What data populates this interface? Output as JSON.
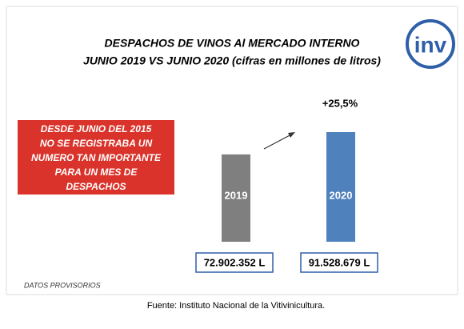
{
  "chart_data": {
    "type": "bar",
    "title": [
      "DESPACHOS DE VINOS Al MERCADO INTERNO",
      "JUNIO 2019 VS JUNIO 2020 (cifras en millones de litros)"
    ],
    "categories": [
      "2019",
      "2020"
    ],
    "values": [
      72902352,
      91528679
    ],
    "value_labels": [
      "72.902.352 L",
      "91.528.679 L"
    ],
    "colors": [
      "#7f7f7f",
      "#4f81bd"
    ],
    "annotation": "+25,5%",
    "callout": [
      "DESDE JUNIO DEL 2015",
      "NO SE REGISTRABA UN",
      "NUMERO TAN IMPORTANTE",
      "PARA UN MES DE",
      "DESPACHOS"
    ],
    "note": "DATOS PROVISORIOS",
    "source": "Fuente: Instituto Nacional de la Vitivinicultura.",
    "logo_text": "inv"
  }
}
